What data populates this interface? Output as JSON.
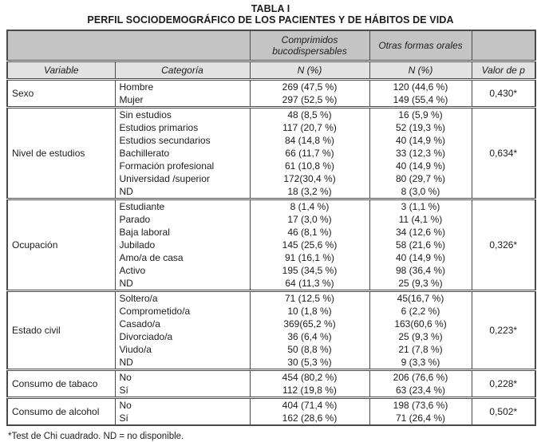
{
  "title": {
    "line1": "TABLA I",
    "line2": "PERFIL SOCIODEMOGRÁFICO DE LOS PACIENTES Y DE HÁBITOS DE VIDA"
  },
  "colors": {
    "border": "#4a4a4a",
    "header_top_bg": "#c4c4c4",
    "header_bottom_bg": "#e2e2e2",
    "text": "#1c1c1c"
  },
  "table": {
    "header": {
      "group_cols": [
        "Comprimidos bucodispersables",
        "Otras formas orales"
      ],
      "columns": [
        "Variable",
        "Categoría",
        "N (%)",
        "N (%)",
        "Valor de p"
      ]
    },
    "groups": [
      {
        "variable": "Sexo",
        "p_value": "0,430*",
        "rows": [
          {
            "category": "Hombre",
            "comprimidos": "269 (47,5 %)",
            "otras": "120 (44,6 %)"
          },
          {
            "category": "Mujer",
            "comprimidos": "297 (52,5 %)",
            "otras": "149 (55,4 %)"
          }
        ]
      },
      {
        "variable": "Nivel de estudios",
        "p_value": "0,634*",
        "rows": [
          {
            "category": "Sin estudios",
            "comprimidos": "48 (8,5 %)",
            "otras": "16 (5,9 %)"
          },
          {
            "category": "Estudios primarios",
            "comprimidos": "117 (20,7 %)",
            "otras": "52 (19,3 %)"
          },
          {
            "category": "Estudios secundarios",
            "comprimidos": "84 (14,8 %)",
            "otras": "40 (14,9 %)"
          },
          {
            "category": "Bachillerato",
            "comprimidos": "66 (11,7 %)",
            "otras": "33 (12,3 %)"
          },
          {
            "category": "Formación profesional",
            "comprimidos": "61 (10,8 %)",
            "otras": "40 (14,9 %)"
          },
          {
            "category": "Universidad /superior",
            "comprimidos": "172(30,4 %)",
            "otras": "80 (29,7 %)"
          },
          {
            "category": "ND",
            "comprimidos": "18 (3,2 %)",
            "otras": "8 (3,0 %)"
          }
        ]
      },
      {
        "variable": "Ocupación",
        "p_value": "0,326*",
        "rows": [
          {
            "category": "Estudiante",
            "comprimidos": "8 (1,4 %)",
            "otras": "3 (1,1 %)"
          },
          {
            "category": "Parado",
            "comprimidos": "17 (3,0 %)",
            "otras": "11 (4,1 %)"
          },
          {
            "category": "Baja laboral",
            "comprimidos": "46 (8,1 %)",
            "otras": "34 (12,6 %)"
          },
          {
            "category": "Jubilado",
            "comprimidos": "145 (25,6 %)",
            "otras": "58 (21,6 %)"
          },
          {
            "category": "Amo/a de casa",
            "comprimidos": "91 (16,1 %)",
            "otras": "40 (14,9 %)"
          },
          {
            "category": "Activo",
            "comprimidos": "195 (34,5 %)",
            "otras": "98 (36,4 %)"
          },
          {
            "category": "ND",
            "comprimidos": "64 (11,3 %)",
            "otras": "25 (9,3 %)"
          }
        ]
      },
      {
        "variable": "Estado civil",
        "p_value": "0,223*",
        "rows": [
          {
            "category": "Soltero/a",
            "comprimidos": "71 (12,5 %)",
            "otras": "45(16,7 %)"
          },
          {
            "category": "Comprometido/a",
            "comprimidos": "10 (1,8 %)",
            "otras": "6 (2,2 %)"
          },
          {
            "category": "Casado/a",
            "comprimidos": "369(65,2 %)",
            "otras": "163(60,6 %)"
          },
          {
            "category": "Divorciado/a",
            "comprimidos": "36 (6,4 %)",
            "otras": "25 (9,3 %)"
          },
          {
            "category": "Viudo/a",
            "comprimidos": "50 (8,8 %)",
            "otras": "21 (7,8 %)"
          },
          {
            "category": "ND",
            "comprimidos": "30 (5,3 %)",
            "otras": "9 (3,3 %)"
          }
        ]
      },
      {
        "variable": "Consumo de tabaco",
        "p_value": "0,228*",
        "rows": [
          {
            "category": "No",
            "comprimidos": "454 (80,2 %)",
            "otras": "206 (76,6 %)"
          },
          {
            "category": "Sí",
            "comprimidos": "112 (19,8 %)",
            "otras": "63 (23,4 %)"
          }
        ]
      },
      {
        "variable": "Consumo de alcohol",
        "p_value": "0,502*",
        "rows": [
          {
            "category": "No",
            "comprimidos": "404 (71,4 %)",
            "otras": "198 (73,6 %)"
          },
          {
            "category": "Sí",
            "comprimidos": "162 (28,6 %)",
            "otras": "71 (26,4 %)"
          }
        ]
      }
    ]
  },
  "footnote": "*Test de Chi cuadrado. ND = no disponible."
}
